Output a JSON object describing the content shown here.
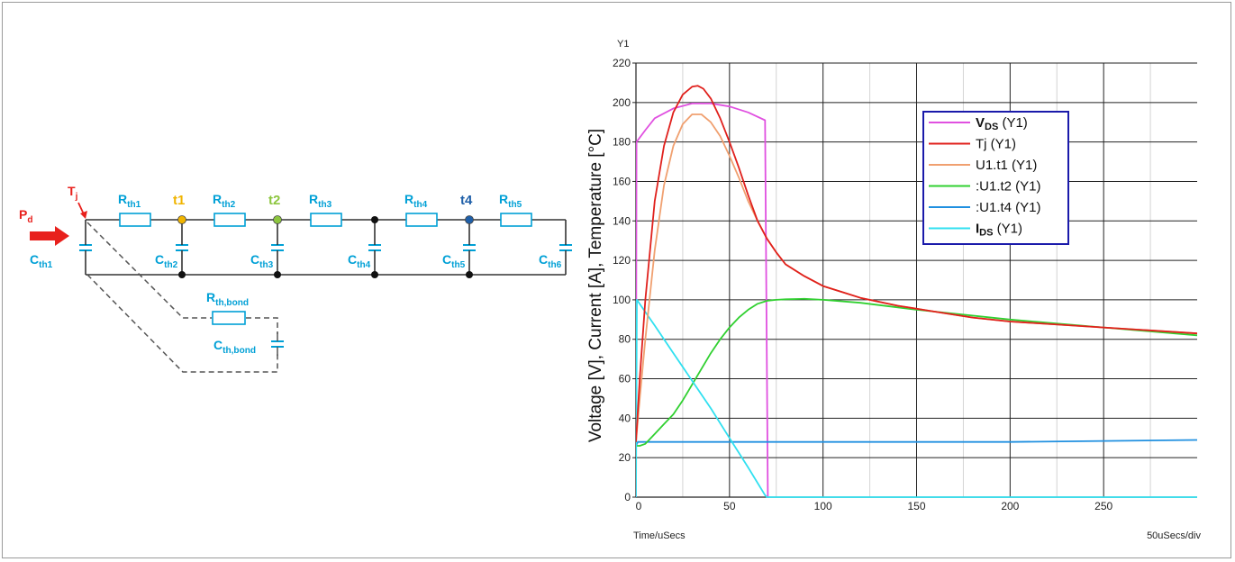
{
  "circuit": {
    "input_label": "P",
    "input_sub": "d",
    "tj_label": "T",
    "tj_sub": "j",
    "resistors": [
      {
        "main": "R",
        "sub": "th1"
      },
      {
        "main": "R",
        "sub": "th2"
      },
      {
        "main": "R",
        "sub": "th3"
      },
      {
        "main": "R",
        "sub": "th4"
      },
      {
        "main": "R",
        "sub": "th5"
      }
    ],
    "capacitors": [
      {
        "main": "C",
        "sub": "th1"
      },
      {
        "main": "C",
        "sub": "th2"
      },
      {
        "main": "C",
        "sub": "th3"
      },
      {
        "main": "C",
        "sub": "th4"
      },
      {
        "main": "C",
        "sub": "th5"
      },
      {
        "main": "C",
        "sub": "th6"
      }
    ],
    "nodes": [
      {
        "label": "t1",
        "color": "#f0b400"
      },
      {
        "label": "t2",
        "color": "#8dc63f"
      },
      {
        "label": "t4",
        "color": "#1f5fa8"
      }
    ],
    "bond_resistor": {
      "main": "R",
      "sub": "th,bond"
    },
    "bond_capacitor": {
      "main": "C",
      "sub": "th,bond"
    },
    "colors": {
      "component": "#00a0d6",
      "wire": "#333333",
      "input": "#e8201c",
      "dashed": "#555555"
    }
  },
  "chart_data": {
    "type": "line",
    "y_axis_name": "Y1",
    "ylabel": "Voltage [V], Current [A], Temperature [°C]",
    "xlabel": "Time/uSecs",
    "x_scale_label": "50uSecs/div",
    "xlim": [
      0,
      300
    ],
    "ylim": [
      0,
      220
    ],
    "x_ticks": [
      0,
      50,
      100,
      150,
      200,
      250
    ],
    "y_ticks": [
      0,
      20,
      40,
      60,
      80,
      100,
      120,
      140,
      160,
      180,
      200,
      220
    ],
    "x_tick_labels": [
      "0",
      "50",
      "100",
      "150",
      "200",
      "250"
    ],
    "y_tick_labels": [
      "0",
      "20",
      "40",
      "60",
      "80",
      "100",
      "120",
      "140",
      "160",
      "180",
      "200",
      "220"
    ],
    "grid": true,
    "legend_position": "top-right",
    "series": [
      {
        "name": "V",
        "name_sub": "DS",
        "name_suffix": "(Y1)",
        "color": "#e050e0",
        "x": [
          0,
          0.3,
          5,
          10,
          20,
          30,
          40,
          50,
          60,
          69,
          70.5,
          71
        ],
        "y": [
          0,
          180,
          186,
          192,
          197,
          199.5,
          199.5,
          198,
          195,
          191,
          0,
          0
        ]
      },
      {
        "name": "Tj (Y1)",
        "color": "#e0201c",
        "x": [
          0,
          2,
          5,
          10,
          15,
          20,
          25,
          30,
          33,
          36,
          40,
          45,
          50,
          55,
          60,
          65,
          70,
          75,
          80,
          90,
          100,
          110,
          120,
          140,
          160,
          180,
          200,
          250,
          300
        ],
        "y": [
          28,
          60,
          100,
          150,
          178,
          195,
          204,
          208,
          208.5,
          207,
          202,
          192,
          180,
          167,
          153,
          140,
          131,
          124,
          118,
          112,
          107,
          104,
          101,
          97,
          94,
          91,
          89,
          86,
          83
        ]
      },
      {
        "name": "U1.t1 (Y1)",
        "color": "#f0a070",
        "x": [
          0,
          2,
          5,
          10,
          15,
          20,
          25,
          30,
          35,
          40,
          45,
          50,
          55,
          60,
          65,
          70,
          75,
          80,
          90,
          100,
          110,
          120,
          140,
          160,
          180,
          200,
          250,
          300
        ],
        "y": [
          28,
          50,
          80,
          125,
          158,
          178,
          189,
          194,
          194,
          190,
          183,
          173,
          162,
          150,
          140,
          131,
          124,
          118,
          112,
          107,
          104,
          101,
          97,
          94,
          91,
          89,
          86,
          83
        ]
      },
      {
        "name": ":U1.t2 (Y1)",
        "color": "#30d030",
        "x": [
          0,
          2,
          5,
          10,
          15,
          20,
          25,
          30,
          35,
          40,
          45,
          50,
          55,
          60,
          65,
          70,
          75,
          80,
          90,
          100,
          120,
          150,
          200,
          250,
          300
        ],
        "y": [
          26,
          26,
          27,
          32,
          37,
          42,
          49,
          57,
          65,
          73,
          80,
          86,
          91,
          95,
          98,
          99.5,
          100,
          100.3,
          100.5,
          100,
          98.5,
          95,
          90,
          86,
          82
        ]
      },
      {
        "name": ":U1.t4 (Y1)",
        "color": "#2090e0",
        "x": [
          0,
          1,
          50,
          100,
          150,
          200,
          250,
          300
        ],
        "y": [
          26,
          28,
          28,
          28,
          28,
          28,
          28.5,
          29
        ]
      },
      {
        "name": "I",
        "name_sub": "DS",
        "name_suffix": "(Y1)",
        "color": "#30e0f0",
        "x": [
          0,
          0.5,
          10,
          20,
          30,
          40,
          50,
          60,
          69,
          70,
          300
        ],
        "y": [
          0,
          100,
          87,
          73,
          59,
          45,
          30,
          15,
          1,
          0,
          0
        ]
      }
    ]
  }
}
